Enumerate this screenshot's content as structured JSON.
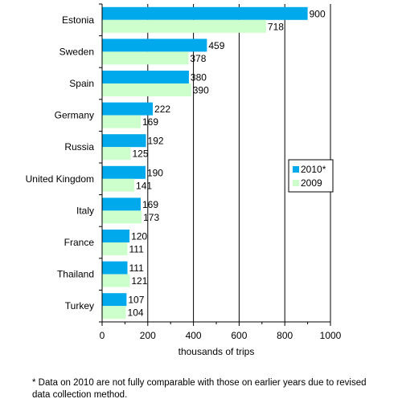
{
  "chart_data": {
    "type": "bar",
    "orientation": "horizontal",
    "categories": [
      "Estonia",
      "Sweden",
      "Spain",
      "Germany",
      "Russia",
      "United Kingdom",
      "Italy",
      "France",
      "Thailand",
      "Turkey"
    ],
    "series": [
      {
        "name": "2010*",
        "values": [
          900,
          459,
          380,
          222,
          192,
          190,
          169,
          120,
          111,
          107
        ],
        "color": "#00a8ec"
      },
      {
        "name": "2009",
        "values": [
          718,
          378,
          390,
          169,
          125,
          141,
          173,
          111,
          121,
          104
        ],
        "color": "#ccffcc"
      }
    ],
    "xlabel": "thousands of trips",
    "xlim": [
      0,
      1000
    ],
    "xticks": [
      "0",
      "200",
      "400",
      "600",
      "800",
      "1000"
    ],
    "grid": true,
    "legend_position": "right"
  },
  "footnote": "* Data on 2010 are not fully comparable with those on earlier years due to revised data collection method."
}
